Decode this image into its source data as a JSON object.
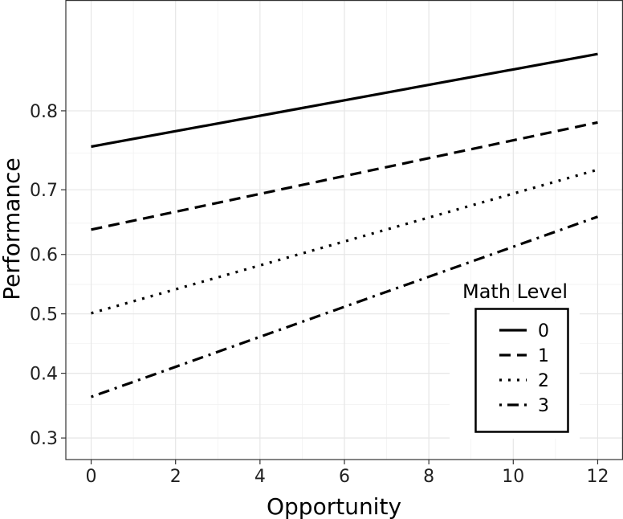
{
  "chart_data": {
    "type": "line",
    "title": "",
    "xlabel": "Opportunity",
    "ylabel": "Performance",
    "xlim": [
      -0.6,
      12.6
    ],
    "ylim": [
      0.27,
      0.895
    ],
    "y_scale": "transformed (spacing widens toward 0.5)",
    "xticks": [
      0,
      2,
      4,
      6,
      8,
      10,
      12
    ],
    "xtick_labels": [
      "0",
      "2",
      "4",
      "6",
      "8",
      "10",
      "12"
    ],
    "yticks": [
      0.3,
      0.4,
      0.5,
      0.6,
      0.7,
      0.8
    ],
    "ytick_labels": [
      "0.3",
      "0.4",
      "0.5",
      "0.6",
      "0.7",
      "0.8"
    ],
    "grid": true,
    "legend": {
      "title": "Math Level",
      "placement": "bottom-right",
      "entries": [
        {
          "label": "0",
          "linestyle": "solid"
        },
        {
          "label": "1",
          "linestyle": "dashed"
        },
        {
          "label": "2",
          "linestyle": "dotted"
        },
        {
          "label": "3",
          "linestyle": "dashdot"
        }
      ]
    },
    "series": [
      {
        "name": "0",
        "linestyle": "solid",
        "color": "#000000",
        "x": [
          0,
          12
        ],
        "y": [
          0.758,
          0.855
        ]
      },
      {
        "name": "1",
        "linestyle": "dashed",
        "color": "#000000",
        "x": [
          0,
          12
        ],
        "y": [
          0.64,
          0.787
        ]
      },
      {
        "name": "2",
        "linestyle": "dotted",
        "color": "#000000",
        "x": [
          0,
          12
        ],
        "y": [
          0.501,
          0.728
        ]
      },
      {
        "name": "3",
        "linestyle": "dashdot",
        "color": "#000000",
        "x": [
          0,
          12
        ],
        "y": [
          0.362,
          0.66
        ]
      }
    ]
  }
}
